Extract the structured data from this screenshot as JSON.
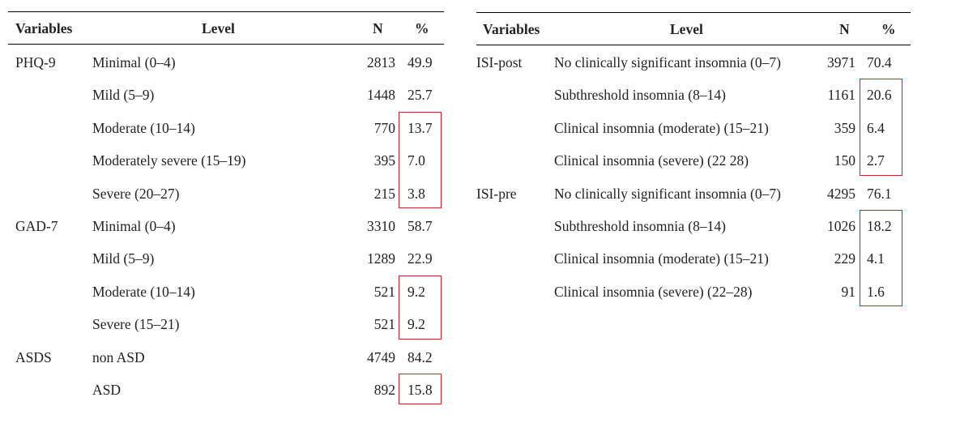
{
  "colors": {
    "highlight_box": "#c0272d",
    "rule": "#000000",
    "text": "#222222"
  },
  "headers": {
    "variables": "Variables",
    "level": "Level",
    "n": "N",
    "pct": "%"
  },
  "left_table": {
    "rows": [
      {
        "variable": "PHQ-9",
        "level": "Minimal (0–4)",
        "n": "2813",
        "pct": "49.9"
      },
      {
        "variable": "",
        "level": "Mild (5–9)",
        "n": "1448",
        "pct": "25.7"
      },
      {
        "variable": "",
        "level": "Moderate (10–14)",
        "n": "770",
        "pct": "13.7"
      },
      {
        "variable": "",
        "level": "Moderately severe (15–19)",
        "n": "395",
        "pct": "7.0"
      },
      {
        "variable": "",
        "level": "Severe (20–27)",
        "n": "215",
        "pct": "3.8"
      },
      {
        "variable": "GAD-7",
        "level": "Minimal (0–4)",
        "n": "3310",
        "pct": "58.7"
      },
      {
        "variable": "",
        "level": "Mild (5–9)",
        "n": "1289",
        "pct": "22.9"
      },
      {
        "variable": "",
        "level": "Moderate (10–14)",
        "n": "521",
        "pct": "9.2"
      },
      {
        "variable": "",
        "level": "Severe (15–21)",
        "n": "521",
        "pct": "9.2"
      },
      {
        "variable": "ASDS",
        "level": "non ASD",
        "n": "4749",
        "pct": "84.2"
      },
      {
        "variable": "",
        "level": "ASD",
        "n": "892",
        "pct": "15.8"
      }
    ],
    "highlight_groups": [
      [
        2,
        4
      ],
      [
        7,
        8
      ],
      [
        10,
        10
      ]
    ]
  },
  "right_table": {
    "rows": [
      {
        "variable": "ISI-post",
        "level": "No clinically significant insomnia (0–7)",
        "n": "3971",
        "pct": "70.4"
      },
      {
        "variable": "",
        "level": "Subthreshold insomnia (8–14)",
        "n": "1161",
        "pct": "20.6"
      },
      {
        "variable": "",
        "level": "Clinical insomnia (moderate) (15–21)",
        "n": "359",
        "pct": "6.4"
      },
      {
        "variable": "",
        "level": "Clinical insomnia (severe) (22  28)",
        "n": "150",
        "pct": "2.7"
      },
      {
        "variable": "ISI-pre",
        "level": "No clinically significant insomnia (0–7)",
        "n": "4295",
        "pct": "76.1"
      },
      {
        "variable": "",
        "level": "Subthreshold insomnia (8–14)",
        "n": "1026",
        "pct": "18.2"
      },
      {
        "variable": "",
        "level": "Clinical insomnia (moderate) (15–21)",
        "n": "229",
        "pct": "4.1"
      },
      {
        "variable": "",
        "level": "Clinical insomnia (severe) (22–28)",
        "n": "91",
        "pct": "1.6"
      }
    ],
    "highlight_groups": [
      [
        1,
        3
      ],
      [
        5,
        7
      ]
    ]
  }
}
